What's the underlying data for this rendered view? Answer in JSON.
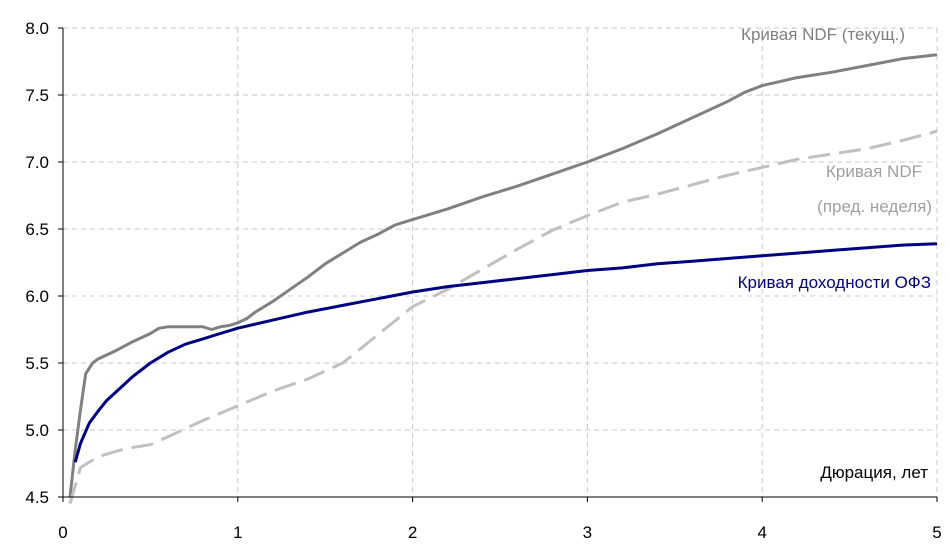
{
  "chart_data": {
    "type": "line",
    "title": "",
    "xlabel": "Дюрация, лет",
    "ylabel": "",
    "xlim": [
      0,
      5
    ],
    "ylim": [
      4.5,
      8.0
    ],
    "xticks": [
      "0",
      "1",
      "2",
      "3",
      "4",
      "5"
    ],
    "yticks": [
      "4.5",
      "5.0",
      "5.5",
      "6.0",
      "6.5",
      "7.0",
      "7.5",
      "8.0"
    ],
    "grid": true,
    "legend": "none",
    "series": [
      {
        "name": "Кривая NDF (текущ.)",
        "color": "#808080",
        "dash": "solid",
        "label_lines": [
          "Кривая NDF (текущ.)"
        ],
        "x": [
          0.04,
          0.07,
          0.1,
          0.13,
          0.17,
          0.2,
          0.3,
          0.4,
          0.5,
          0.55,
          0.6,
          0.7,
          0.8,
          0.85,
          0.9,
          0.95,
          1.0,
          1.05,
          1.1,
          1.2,
          1.3,
          1.4,
          1.5,
          1.6,
          1.7,
          1.8,
          1.9,
          2.0,
          2.2,
          2.4,
          2.6,
          2.8,
          3.0,
          3.2,
          3.4,
          3.6,
          3.8,
          3.9,
          4.0,
          4.2,
          4.4,
          4.6,
          4.8,
          5.0
        ],
        "y": [
          4.5,
          4.85,
          5.15,
          5.42,
          5.5,
          5.53,
          5.59,
          5.66,
          5.72,
          5.76,
          5.77,
          5.77,
          5.77,
          5.75,
          5.77,
          5.78,
          5.8,
          5.83,
          5.88,
          5.96,
          6.05,
          6.14,
          6.24,
          6.32,
          6.4,
          6.46,
          6.53,
          6.57,
          6.65,
          6.74,
          6.82,
          6.91,
          7.0,
          7.1,
          7.21,
          7.33,
          7.45,
          7.52,
          7.57,
          7.63,
          7.67,
          7.72,
          7.77,
          7.8
        ]
      },
      {
        "name": "Кривая NDF (пред. неделя)",
        "color": "#c0c0c0",
        "dash": "dashed",
        "label_lines": [
          "Кривая NDF",
          "(пред. неделя)"
        ],
        "x": [
          0.04,
          0.1,
          0.2,
          0.3,
          0.4,
          0.5,
          0.6,
          0.8,
          1.0,
          1.2,
          1.4,
          1.6,
          1.8,
          2.0,
          2.2,
          2.4,
          2.6,
          2.8,
          3.0,
          3.2,
          3.4,
          3.6,
          3.8,
          4.0,
          4.2,
          4.4,
          4.6,
          4.8,
          5.0
        ],
        "y": [
          4.45,
          4.72,
          4.8,
          4.84,
          4.87,
          4.89,
          4.95,
          5.07,
          5.18,
          5.29,
          5.38,
          5.5,
          5.71,
          5.92,
          6.05,
          6.2,
          6.35,
          6.49,
          6.6,
          6.7,
          6.76,
          6.83,
          6.9,
          6.96,
          7.02,
          7.06,
          7.1,
          7.16,
          7.23
        ]
      },
      {
        "name": "Кривая доходности ОФЗ",
        "color": "#000080",
        "dash": "solid",
        "label_lines": [
          "Кривая доходности ОФЗ"
        ],
        "x": [
          0.07,
          0.1,
          0.15,
          0.2,
          0.25,
          0.3,
          0.4,
          0.5,
          0.6,
          0.7,
          0.8,
          0.9,
          1.0,
          1.2,
          1.4,
          1.6,
          1.8,
          2.0,
          2.2,
          2.4,
          2.6,
          2.8,
          3.0,
          3.2,
          3.4,
          3.6,
          3.8,
          4.0,
          4.2,
          4.4,
          4.6,
          4.8,
          5.0
        ],
        "y": [
          4.76,
          4.9,
          5.05,
          5.14,
          5.22,
          5.28,
          5.4,
          5.5,
          5.58,
          5.64,
          5.68,
          5.72,
          5.76,
          5.82,
          5.88,
          5.93,
          5.98,
          6.03,
          6.07,
          6.1,
          6.13,
          6.16,
          6.19,
          6.21,
          6.24,
          6.26,
          6.28,
          6.3,
          6.32,
          6.34,
          6.36,
          6.38,
          6.39
        ]
      }
    ]
  }
}
